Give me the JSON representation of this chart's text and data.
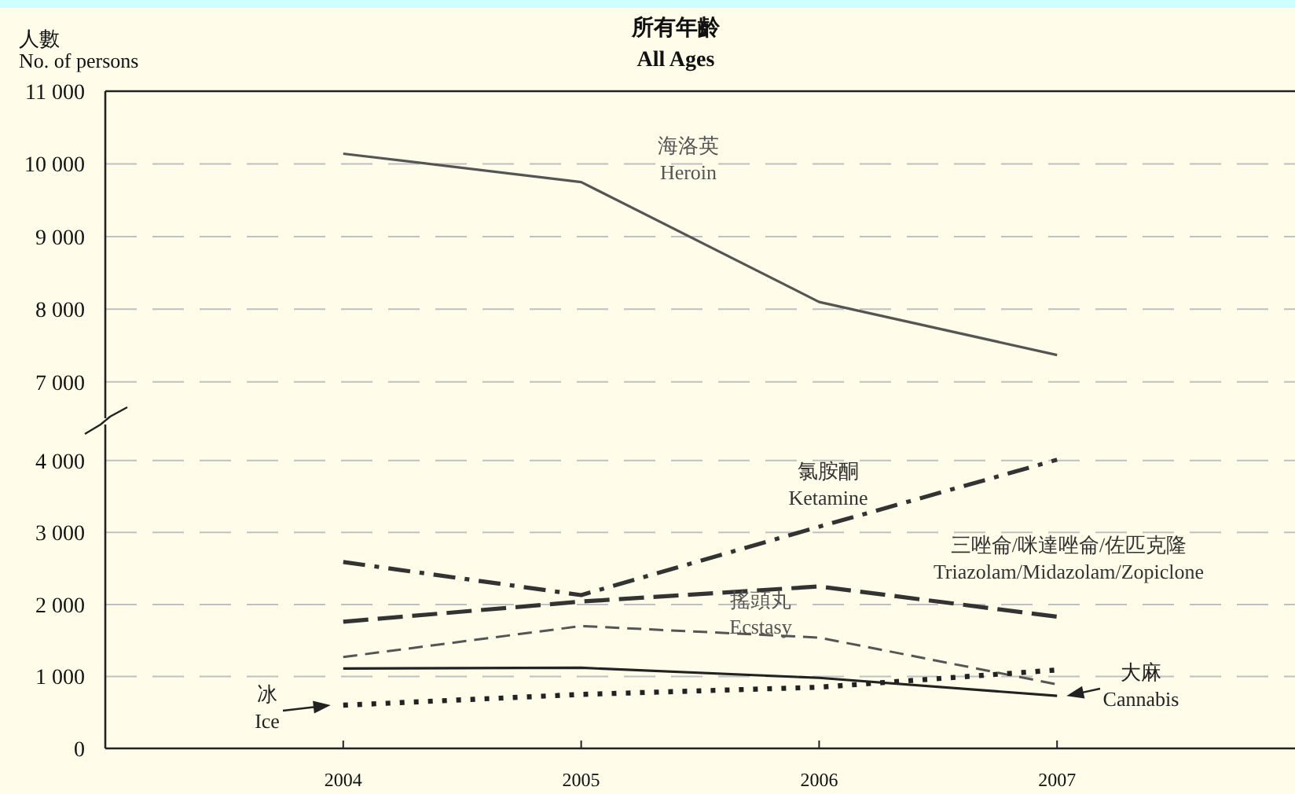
{
  "chart_data": [
    {
      "type": "line",
      "title": "所有年齡",
      "subtitle": "All Ages",
      "ylabel": "人數\nNo. of persons",
      "x": [
        2004,
        2005,
        2006,
        2007
      ],
      "xlim": [
        2003,
        2008
      ],
      "xticks": [
        2004,
        2005,
        2006,
        2007
      ],
      "ylim": [
        6500,
        11000
      ],
      "yticks": [
        {
          "value": 7000,
          "label": "7 000"
        },
        {
          "value": 8000,
          "label": "8 000"
        },
        {
          "value": 9000,
          "label": "9 000"
        },
        {
          "value": 10000,
          "label": "10 000"
        },
        {
          "value": 11000,
          "label": "11 000"
        }
      ],
      "tick_labels": "y",
      "grid": "y",
      "series": [
        {
          "name": "海洛英\nHeroin",
          "color": "#555555",
          "line_style": "solid",
          "values": [
            10140,
            9750,
            8100,
            7370
          ]
        }
      ]
    },
    {
      "type": "line",
      "x": [
        2004,
        2005,
        2006,
        2007
      ],
      "xlim": [
        2003,
        2008
      ],
      "xticks": [
        2004,
        2005,
        2006,
        2007
      ],
      "ylim": [
        0,
        4500
      ],
      "yticks": [
        0,
        {
          "value": 1000,
          "label": "1 000"
        },
        {
          "value": 2000,
          "label": "2 000"
        },
        {
          "value": 3000,
          "label": "3 000"
        },
        {
          "value": 4000,
          "label": "4 000"
        }
      ],
      "grid": "y",
      "series": [
        {
          "name": "氯胺酮\nKetamine",
          "color": "#333333",
          "line_style": "dashdot",
          "values": [
            2590,
            2130,
            3080,
            4010
          ]
        },
        {
          "name": "三唑侖/咪達唑侖/佐匹克隆\nTriazolam/Midazolam/Zopiclone",
          "color": "#333333",
          "line_style": "longdash",
          "values": [
            1760,
            2040,
            2250,
            1830
          ]
        },
        {
          "name": "搖頭丸\nEcstasy",
          "color": "#555555",
          "line_style": "dashed",
          "values": [
            1270,
            1700,
            1540,
            890
          ]
        },
        {
          "name": "大麻\nCannabis",
          "color": "#222222",
          "line_style": "solid",
          "values": [
            1110,
            1120,
            980,
            730
          ]
        },
        {
          "name": "冰\nIce",
          "color": "#222222",
          "line_style": "dotted",
          "values": [
            600,
            750,
            850,
            1090
          ]
        }
      ]
    }
  ]
}
